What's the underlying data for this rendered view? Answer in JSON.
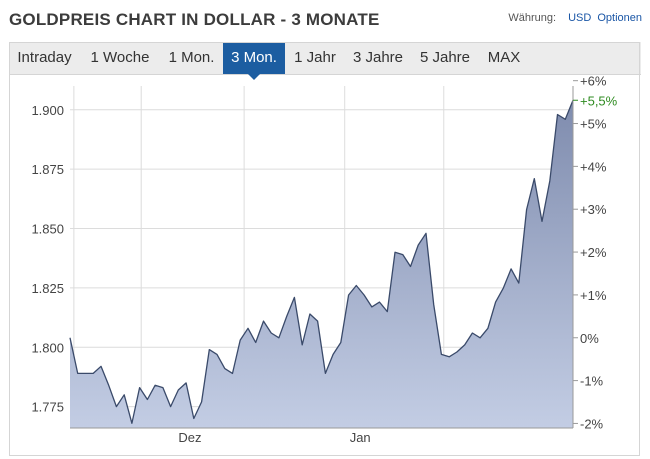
{
  "header": {
    "title": "GOLDPREIS CHART IN DOLLAR - 3 MONATE",
    "currency_label": "Währung:",
    "currency_value": "USD",
    "options_label": "Optionen"
  },
  "tabs": [
    {
      "label": "Intraday",
      "active": false
    },
    {
      "label": "1 Woche",
      "active": false
    },
    {
      "label": "1 Mon.",
      "active": false
    },
    {
      "label": "3 Mon.",
      "active": true
    },
    {
      "label": "1 Jahr",
      "active": false
    },
    {
      "label": "3 Jahre",
      "active": false
    },
    {
      "label": "5 Jahre",
      "active": false
    },
    {
      "label": "MAX",
      "active": false
    }
  ],
  "colors": {
    "accent": "#1c5da1",
    "line": "#3a4a6a",
    "area_top": "#7f8cae",
    "area_bottom": "#c3cde4",
    "positive": "#2e8b20"
  },
  "chart_data": {
    "type": "area",
    "title": "",
    "xlabel": "",
    "ylabel": "",
    "x_ticks": [
      "Dez",
      "Jan"
    ],
    "y_left_ticks": [
      "1.775",
      "1.800",
      "1.825",
      "1.850",
      "1.875",
      "1.900"
    ],
    "y_left_range": [
      1.766,
      1.91
    ],
    "y_right_ticks": [
      "-2%",
      "-1%",
      "0%",
      "+1%",
      "+2%",
      "+3%",
      "+4%",
      "+5%",
      "+6%"
    ],
    "last_change": "+5,5%",
    "grid": true,
    "series": [
      {
        "values": [
          1804,
          1789,
          1789,
          1789,
          1792,
          1784,
          1775,
          1780,
          1768,
          1783,
          1778,
          1784,
          1783,
          1775,
          1782,
          1785,
          1770,
          1777,
          1799,
          1797,
          1791,
          1789,
          1803,
          1808,
          1802,
          1811,
          1806,
          1804,
          1813,
          1821,
          1801,
          1814,
          1811,
          1789,
          1797,
          1802,
          1822,
          1826,
          1822,
          1817,
          1819,
          1815,
          1840,
          1839,
          1834,
          1843,
          1848,
          1818,
          1797,
          1796,
          1798,
          1801,
          1806,
          1804,
          1808,
          1819,
          1825,
          1833,
          1827,
          1858,
          1871,
          1853,
          1870,
          1898,
          1896,
          1904
        ]
      }
    ]
  }
}
